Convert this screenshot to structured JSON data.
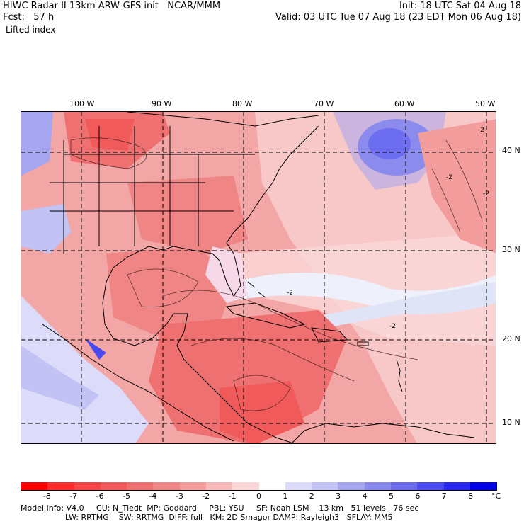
{
  "header": {
    "line1_left": "HIWC Radar II 13km ARW-GFS init   NCAR/MMM",
    "line2_left": "Fcst:   57 h",
    "line3_left": "Lifted index",
    "line1_right": "Init: 18 UTC Sat 04 Aug 18",
    "line2_right": "Valid: 03 UTC Tue 07 Aug 18 (23 EDT Mon 06 Aug 18)"
  },
  "map": {
    "lon_labels": [
      "100 W",
      "90 W",
      "80 W",
      "70 W",
      "60 W",
      "50 W"
    ],
    "lat_labels": [
      "40 N",
      "30 N",
      "20 N",
      "10 N"
    ],
    "contour_label_color": "#000000"
  },
  "colorbar": {
    "labels": [
      "-8",
      "-7",
      "-6",
      "-5",
      "-4",
      "-3",
      "-2",
      "-1",
      "0",
      "1",
      "2",
      "3",
      "4",
      "5",
      "6",
      "7",
      "8"
    ],
    "unit": "°C",
    "colors": [
      "#ff0000",
      "#ff2a2a",
      "#f54545",
      "#f05a5a",
      "#ee7070",
      "#ef8585",
      "#f29c9c",
      "#f6b8b8",
      "#fad6d6",
      "#ffffff",
      "#dcdcfa",
      "#c2c2f5",
      "#a6a6f0",
      "#8a8aee",
      "#6b6bec",
      "#4a4aee",
      "#2828f0",
      "#0000e6"
    ]
  },
  "footer": {
    "line1": "Model Info: V4.0     CU: N_Tiedt  MP: Goddard     PBL: YSU     SF: Noah LSM    13 km   51 levels   76 sec",
    "line2": "                  LW: RRTMG    SW: RRTMG  DIFF: full   KM: 2D Smagor DAMP: Rayleigh3   SFLAY: MM5"
  }
}
